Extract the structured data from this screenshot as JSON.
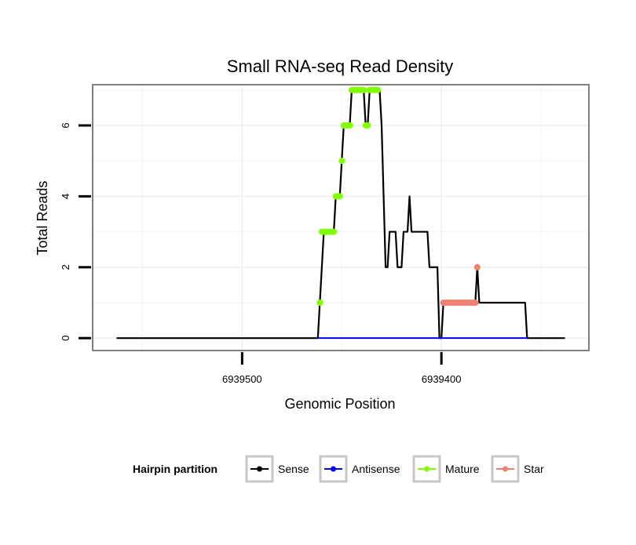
{
  "chart_data": {
    "type": "line",
    "title": "Small RNA-seq Read Density",
    "xlabel": "Genomic Position",
    "ylabel": "Total Reads",
    "x_reversed": true,
    "xlim": [
      6939575,
      6939326
    ],
    "ylim": [
      -0.35,
      7.15
    ],
    "x_ticks": [
      6939500,
      6939400
    ],
    "x_tick_labels": [
      "6939500",
      "6939400"
    ],
    "y_ticks": [
      0,
      2,
      4,
      6
    ],
    "y_tick_labels": [
      "0",
      "2",
      "4",
      "6"
    ],
    "grid": true,
    "legend": {
      "title": "Hairpin partition",
      "position": "bottom",
      "entries": [
        {
          "label": "Sense",
          "color": "#000000"
        },
        {
          "label": "Antisense",
          "color": "#0000ff"
        },
        {
          "label": "Mature",
          "color": "#7fff00"
        },
        {
          "label": "Star",
          "color": "#f08070"
        }
      ]
    },
    "series": [
      {
        "name": "Sense",
        "color": "#000000",
        "x": [
          6939563,
          6939462,
          6939461,
          6939459,
          6939457,
          6939456,
          6939455,
          6939454,
          6939453,
          6939452,
          6939451,
          6939450,
          6939449,
          6939448,
          6939447,
          6939446,
          6939445,
          6939444,
          6939443,
          6939442,
          6939441,
          6939440,
          6939439,
          6939438,
          6939437,
          6939436,
          6939435,
          6939434,
          6939433,
          6939432,
          6939431,
          6939430,
          6939429,
          6939428,
          6939427,
          6939426,
          6939425,
          6939424,
          6939423,
          6939422,
          6939421,
          6939420,
          6939419,
          6939418,
          6939417,
          6939416,
          6939415,
          6939414,
          6939413,
          6939412,
          6939411,
          6939410,
          6939409,
          6939408,
          6939407,
          6939406,
          6939405,
          6939404,
          6939403,
          6939402,
          6939401,
          6939400,
          6939399,
          6939398,
          6939397,
          6939396,
          6939395,
          6939394,
          6939393,
          6939392,
          6939391,
          6939390,
          6939389,
          6939388,
          6939387,
          6939386,
          6939385,
          6939384,
          6939383,
          6939382,
          6939381,
          6939380,
          6939379,
          6939378,
          6939377,
          6939376,
          6939375,
          6939374,
          6939373,
          6939372,
          6939371,
          6939370,
          6939369,
          6939368,
          6939367,
          6939366,
          6939365,
          6939364,
          6939363,
          6939362,
          6939361,
          6939360,
          6939359,
          6939358,
          6939357,
          6939356,
          6939355,
          6939354,
          6939353,
          6939352,
          6939351,
          6939350,
          6939349,
          6939348,
          6939347,
          6939346,
          6939345,
          6939344,
          6939343,
          6939342,
          6939341,
          6939340,
          6939339,
          6939338
        ],
        "values": [
          0,
          0,
          1,
          3,
          3,
          3,
          3,
          3,
          4,
          4,
          4,
          5,
          6,
          6,
          6,
          6,
          7,
          7,
          7,
          7,
          7,
          7,
          7,
          6,
          6,
          7,
          7,
          7,
          7,
          7,
          7,
          6,
          4,
          2,
          2,
          3,
          3,
          3,
          3,
          2,
          2,
          2,
          3,
          3,
          3,
          4,
          3,
          3,
          3,
          3,
          3,
          3,
          3,
          3,
          3,
          2,
          2,
          2,
          2,
          2,
          0,
          0,
          1,
          1,
          1,
          1,
          1,
          1,
          1,
          1,
          1,
          1,
          1,
          1,
          1,
          1,
          1,
          1,
          1,
          2,
          1,
          1,
          1,
          1,
          1,
          1,
          1,
          1,
          1,
          1,
          1,
          1,
          1,
          1,
          1,
          1,
          1,
          1,
          1,
          1,
          1,
          1,
          1,
          1,
          0,
          0,
          0,
          0,
          0,
          0,
          0,
          0,
          0,
          0,
          0,
          0,
          0,
          0,
          0,
          0,
          0,
          0,
          0,
          0
        ]
      },
      {
        "name": "Antisense",
        "color": "#0000ff",
        "x": [
          6939462,
          6939357
        ],
        "values": [
          0,
          0
        ]
      },
      {
        "name": "Mature",
        "color": "#7fff00",
        "x": [
          6939461,
          6939460,
          6939459,
          6939458,
          6939457,
          6939456,
          6939455,
          6939454,
          6939453,
          6939452,
          6939451,
          6939450,
          6939449,
          6939448,
          6939447,
          6939446,
          6939445,
          6939444,
          6939443,
          6939442,
          6939441,
          6939440,
          6939439,
          6939438,
          6939437,
          6939436,
          6939435,
          6939434,
          6939433,
          6939432
        ],
        "values": [
          1,
          3,
          3,
          3,
          3,
          3,
          3,
          3,
          4,
          4,
          4,
          5,
          6,
          6,
          6,
          6,
          7,
          7,
          7,
          7,
          7,
          7,
          7,
          6,
          6,
          7,
          7,
          7,
          7,
          7
        ]
      },
      {
        "name": "Star",
        "color": "#f08070",
        "x": [
          6939399,
          6939398,
          6939397,
          6939396,
          6939395,
          6939394,
          6939393,
          6939392,
          6939391,
          6939390,
          6939389,
          6939388,
          6939387,
          6939386,
          6939385,
          6939384,
          6939383,
          6939382
        ],
        "values": [
          1,
          1,
          1,
          1,
          1,
          1,
          1,
          1,
          1,
          1,
          1,
          1,
          1,
          1,
          1,
          1,
          1,
          2
        ]
      }
    ]
  }
}
